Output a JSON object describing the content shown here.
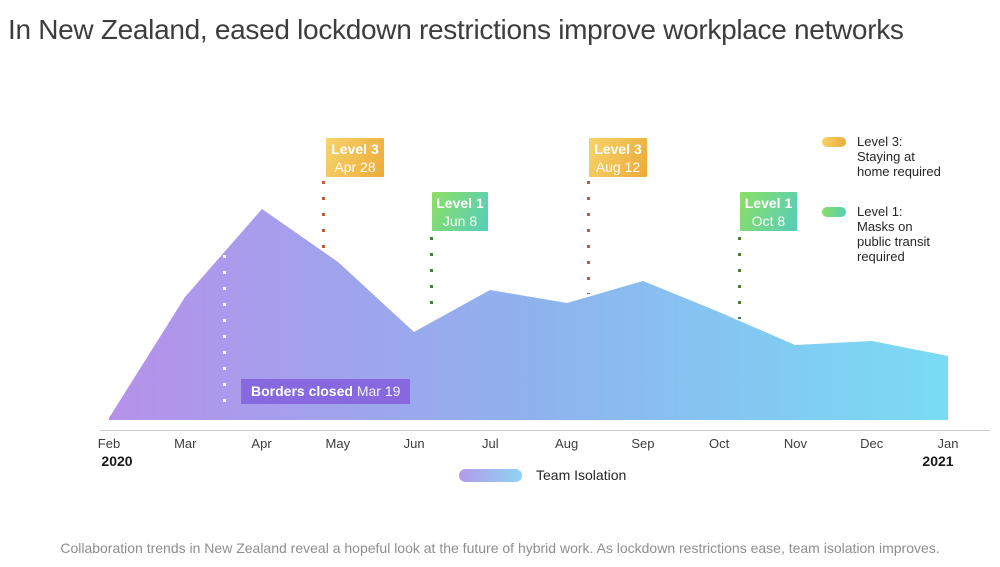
{
  "title": "In New Zealand, eased lockdown restrictions improve workplace networks",
  "caption": "Collaboration trends in New Zealand reveal a hopeful look at the future of hybrid work. As lockdown restrictions ease, team isolation improves.",
  "side_legend": [
    {
      "id": "level3",
      "lines": [
        "Level 3:",
        "Staying at",
        "home required"
      ]
    },
    {
      "id": "level1",
      "lines": [
        "Level 1:",
        "Masks on",
        "public transit",
        "required"
      ]
    }
  ],
  "series_legend": {
    "label": "Team Isolation"
  },
  "colors": {
    "area_start": "#b591ea",
    "area_mid": "#8fb2ee",
    "area_end": "#79dbf4",
    "level3_badge_start": "#f6d36a",
    "level3_badge_end": "#ecab3a",
    "level1_badge_start": "#8cdf63",
    "level1_badge_end": "#55cdba",
    "borders_badge": "#8768df",
    "dots_orange": "#bf5a3d",
    "dots_green": "#4e7d38",
    "dots_white": "#ffffff",
    "legend_pill_start": "#b39be9",
    "legend_pill_end": "#8ed3f3"
  },
  "chart_data": {
    "type": "area",
    "title": "In New Zealand, eased lockdown restrictions improve workplace networks",
    "x": [
      "Feb",
      "Mar",
      "Apr",
      "May",
      "Jun",
      "Jul",
      "Aug",
      "Sep",
      "Oct",
      "Nov",
      "Dec",
      "Jan"
    ],
    "x_year_start": "2020",
    "x_year_end": "2021",
    "series": [
      {
        "name": "Team Isolation",
        "values": [
          1,
          56,
          96,
          72,
          40,
          59,
          53,
          63,
          49,
          34,
          36,
          29
        ]
      }
    ],
    "ylim": [
      0,
      100
    ],
    "y_axis_visible": false,
    "legend_position": "bottom",
    "annotations": {
      "borders_closed": {
        "label": "Borders closed",
        "date": "Mar 19"
      },
      "level3_apr": {
        "label": "Level 3",
        "date": "Apr 28"
      },
      "level1_jun": {
        "label": "Level 1",
        "date": "Jun 8"
      },
      "level3_aug": {
        "label": "Level 3",
        "date": "Aug 12"
      },
      "level1_oct": {
        "label": "Level 1",
        "date": "Oct 8"
      }
    }
  }
}
